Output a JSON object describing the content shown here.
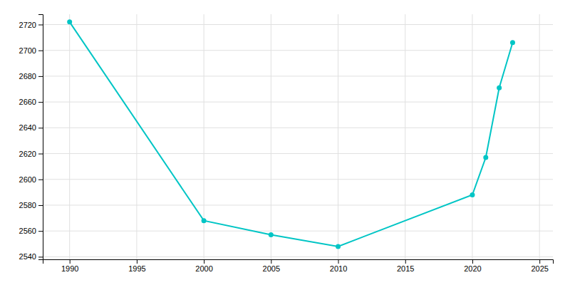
{
  "chart_data": {
    "type": "line",
    "x": [
      1990,
      2000,
      2005,
      2010,
      2020,
      2021,
      2022,
      2023
    ],
    "values": [
      2722,
      2568,
      2557,
      2548,
      2588,
      2617,
      2671,
      2706
    ],
    "color": "#00C5C5",
    "marker": "circle",
    "xlim": [
      1988,
      2026
    ],
    "ylim": [
      2538,
      2728
    ],
    "xticks": [
      1990,
      1995,
      2000,
      2005,
      2010,
      2015,
      2020,
      2025
    ],
    "yticks": [
      2540,
      2560,
      2580,
      2600,
      2620,
      2640,
      2660,
      2680,
      2700,
      2720
    ],
    "grid": true
  }
}
